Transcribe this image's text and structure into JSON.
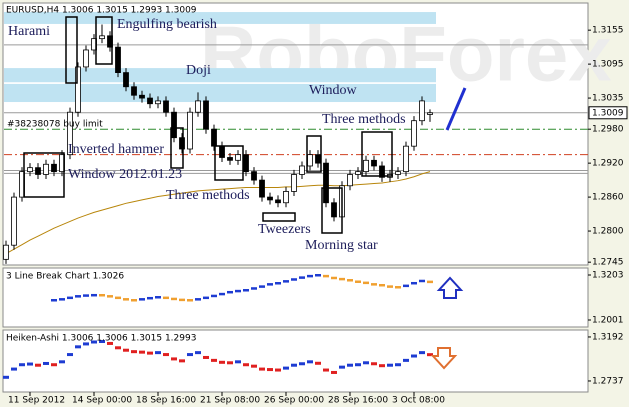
{
  "chart_data": [
    {
      "type": "candlestick",
      "title": "EURUSD,H4 1.3006 1.3015 1.2993 1.3009",
      "watermark": "RoboForex",
      "categories": [
        null,
        null,
        null,
        "11 Sep 2012",
        null,
        null,
        null,
        null,
        null,
        null,
        null,
        "14 Sep 00:00",
        null,
        null,
        null,
        null,
        null,
        null,
        null,
        "18 Sep 16:00",
        null,
        null,
        null,
        null,
        null,
        null,
        null,
        "21 Sep 08:00",
        null,
        null,
        null,
        null,
        null,
        null,
        null,
        "26 Sep 00:00",
        null,
        null,
        null,
        null,
        null,
        null,
        null,
        "28 Sep 16:00",
        null,
        null,
        null,
        null,
        null,
        null,
        null,
        "3 Oct 08:00",
        null,
        null
      ],
      "open": [
        1.275,
        1.2775,
        1.286,
        1.2905,
        1.2912,
        1.29,
        1.2918,
        1.2905,
        1.2935,
        1.301,
        1.309,
        1.312,
        1.314,
        1.3145,
        1.3125,
        1.308,
        1.3055,
        1.304,
        1.3035,
        1.3025,
        1.303,
        1.301,
        1.2965,
        1.2945,
        1.301,
        1.303,
        1.298,
        1.295,
        1.293,
        1.2925,
        1.2935,
        1.2905,
        1.289,
        1.286,
        1.2855,
        1.285,
        1.287,
        1.29,
        1.2915,
        1.2935,
        1.292,
        1.285,
        1.2825,
        1.288,
        1.29,
        1.2905,
        1.2925,
        1.2915,
        1.2895,
        1.29,
        1.2905,
        1.295,
        1.2995,
        1.3006
      ],
      "high": [
        1.2783,
        1.2868,
        1.2913,
        1.292,
        1.292,
        1.2926,
        1.2926,
        1.2943,
        1.3018,
        1.3098,
        1.3128,
        1.3148,
        1.3165,
        1.3153,
        1.3133,
        1.3088,
        1.3063,
        1.3048,
        1.3043,
        1.3038,
        1.3038,
        1.3018,
        1.2973,
        1.3018,
        1.3045,
        1.3038,
        1.2988,
        1.2958,
        1.2938,
        1.2943,
        1.2943,
        1.2913,
        1.2898,
        1.2868,
        1.2863,
        1.2878,
        1.2908,
        1.2923,
        1.2943,
        1.2943,
        1.2928,
        1.2858,
        1.2888,
        1.2908,
        1.2913,
        1.2933,
        1.2933,
        1.2923,
        1.2908,
        1.2913,
        1.2958,
        1.3003,
        1.3038,
        1.3015
      ],
      "low": [
        1.2742,
        1.2767,
        1.2852,
        1.2897,
        1.2892,
        1.2892,
        1.2897,
        1.2897,
        1.2927,
        1.3002,
        1.3082,
        1.3112,
        1.3132,
        1.3117,
        1.3072,
        1.3047,
        1.3032,
        1.3027,
        1.3017,
        1.3017,
        1.3002,
        1.2957,
        1.2937,
        1.2937,
        1.3002,
        1.2972,
        1.2942,
        1.2922,
        1.2917,
        1.2917,
        1.2897,
        1.2882,
        1.2852,
        1.2847,
        1.2842,
        1.2842,
        1.2862,
        1.2892,
        1.2907,
        1.2912,
        1.2842,
        1.2817,
        1.2817,
        1.2872,
        1.2892,
        1.2897,
        1.2907,
        1.2887,
        1.2887,
        1.2892,
        1.2897,
        1.2942,
        1.2987,
        1.2993
      ],
      "close": [
        1.2775,
        1.286,
        1.2905,
        1.2912,
        1.29,
        1.2918,
        1.2905,
        1.2935,
        1.301,
        1.309,
        1.312,
        1.314,
        1.3145,
        1.3125,
        1.308,
        1.3055,
        1.304,
        1.3035,
        1.3025,
        1.303,
        1.301,
        1.2965,
        1.2945,
        1.301,
        1.303,
        1.298,
        1.295,
        1.293,
        1.2925,
        1.2935,
        1.2905,
        1.289,
        1.286,
        1.2855,
        1.285,
        1.287,
        1.29,
        1.2915,
        1.2935,
        1.292,
        1.285,
        1.2825,
        1.288,
        1.29,
        1.2905,
        1.2925,
        1.2915,
        1.2895,
        1.29,
        1.2905,
        1.295,
        1.2995,
        1.303,
        1.3009
      ],
      "up_color": "#ffffff",
      "down_color": "#000000",
      "last_price": 1.3009,
      "ma": {
        "color": "#b8860b",
        "values": [
          1.276,
          1.2768,
          1.2776,
          1.2784,
          1.2791,
          1.2798,
          1.2805,
          1.2811,
          1.2817,
          1.2823,
          1.2828,
          1.2833,
          1.2837,
          1.2841,
          1.2845,
          1.2849,
          1.2852,
          1.2855,
          1.2858,
          1.2861,
          1.2863,
          1.2865,
          1.2867,
          1.2869,
          1.2871,
          1.2872,
          1.2873,
          1.2874,
          1.2875,
          1.2876,
          1.2877,
          1.2877,
          1.2877,
          1.2877,
          1.2877,
          1.2878,
          1.2878,
          1.2879,
          1.288,
          1.2881,
          1.2881,
          1.288,
          1.288,
          1.2881,
          1.2882,
          1.2883,
          1.2884,
          1.2885,
          1.2887,
          1.2889,
          1.2892,
          1.2896,
          1.2901,
          1.2905
        ]
      },
      "bands": [
        [
          1.3166,
          1.3187
        ],
        [
          1.3063,
          1.3088
        ],
        [
          1.3028,
          1.306
        ]
      ],
      "band_color": "#bfe3f2",
      "levels": [
        {
          "value": 1.3129,
          "color": "#9a9a9a",
          "style": "solid"
        },
        {
          "value": 1.3009,
          "color": "#9a9a9a",
          "style": "solid"
        },
        {
          "value": 1.298,
          "color": "#2e8b2e",
          "style": "dashdot"
        },
        {
          "value": 1.2935,
          "color": "#d04020",
          "style": "dashdot"
        },
        {
          "value": 1.2907,
          "color": "#9a9a9a",
          "style": "solid"
        },
        {
          "value": 1.2902,
          "color": "#9a9a9a",
          "style": "solid"
        }
      ],
      "annotations": [
        "Harami",
        "Engulfing bearish",
        "Doji",
        "Window",
        "Three methods",
        "#38238078 buy limit",
        "Inverted hammer",
        "Window 2012.01.23",
        "Three methods",
        "Tweezers",
        "Morning star"
      ],
      "ylim": [
        1.274,
        1.3203
      ],
      "yticks": [
        1.2745,
        {
          "value": 1.28,
          "label": "1.2800"
        },
        {
          "value": 1.286,
          "label": "1.2860"
        },
        {
          "value": 1.292,
          "label": "1.2920"
        },
        {
          "value": 1.298,
          "label": "1.2980"
        },
        1.3035,
        1.3095,
        1.3155
      ]
    },
    {
      "type": "line-break",
      "title": "3 Line Break Chart 1.3026",
      "values": [
        null,
        null,
        null,
        null,
        null,
        null,
        1.2535,
        1.256,
        1.26,
        1.264,
        1.266,
        1.267,
        1.2669,
        1.264,
        1.26,
        1.256,
        1.2535,
        1.256,
        1.259,
        1.2615,
        1.26,
        1.257,
        1.2545,
        1.2535,
        1.256,
        1.26,
        1.265,
        1.27,
        1.275,
        1.278,
        1.2802,
        1.285,
        1.29,
        1.296,
        1.2989,
        1.304,
        1.309,
        1.314,
        1.318,
        1.3203,
        1.318,
        1.313,
        1.31,
        1.3069,
        1.303,
        1.3,
        1.296,
        1.2936,
        1.29,
        1.2882,
        1.292,
        1.299,
        1.305,
        1.3026
      ],
      "up_color": "#1e3cd2",
      "down_color": "#f0a030",
      "ylim": [
        1.1814,
        1.339
      ],
      "yticks": [
        1.2001,
        1.3203
      ]
    },
    {
      "type": "heiken-ashi",
      "title": "Heiken-Ashi 1.3006 1.3006 1.3015 1.2993",
      "values": [
        1.2775,
        1.286,
        1.2905,
        1.2912,
        1.29,
        1.2918,
        1.2905,
        1.2935,
        1.301,
        1.309,
        1.312,
        1.314,
        1.3145,
        1.3125,
        1.308,
        1.3055,
        1.304,
        1.3035,
        1.3025,
        1.303,
        1.301,
        1.2965,
        1.2945,
        1.301,
        1.303,
        1.298,
        1.295,
        1.293,
        1.2925,
        1.2935,
        1.2905,
        1.289,
        1.286,
        1.2855,
        1.285,
        1.287,
        1.29,
        1.2915,
        1.2935,
        1.292,
        1.285,
        1.2825,
        1.288,
        1.29,
        1.2905,
        1.2925,
        1.2915,
        1.2895,
        1.29,
        1.2905,
        1.295,
        1.2995,
        1.303,
        1.3009
      ],
      "up_color": "#1e3cd2",
      "down_color": "#e02020",
      "ylim": [
        1.2623,
        1.3264
      ],
      "yticks": [
        1.2737,
        1.3192
      ]
    }
  ]
}
